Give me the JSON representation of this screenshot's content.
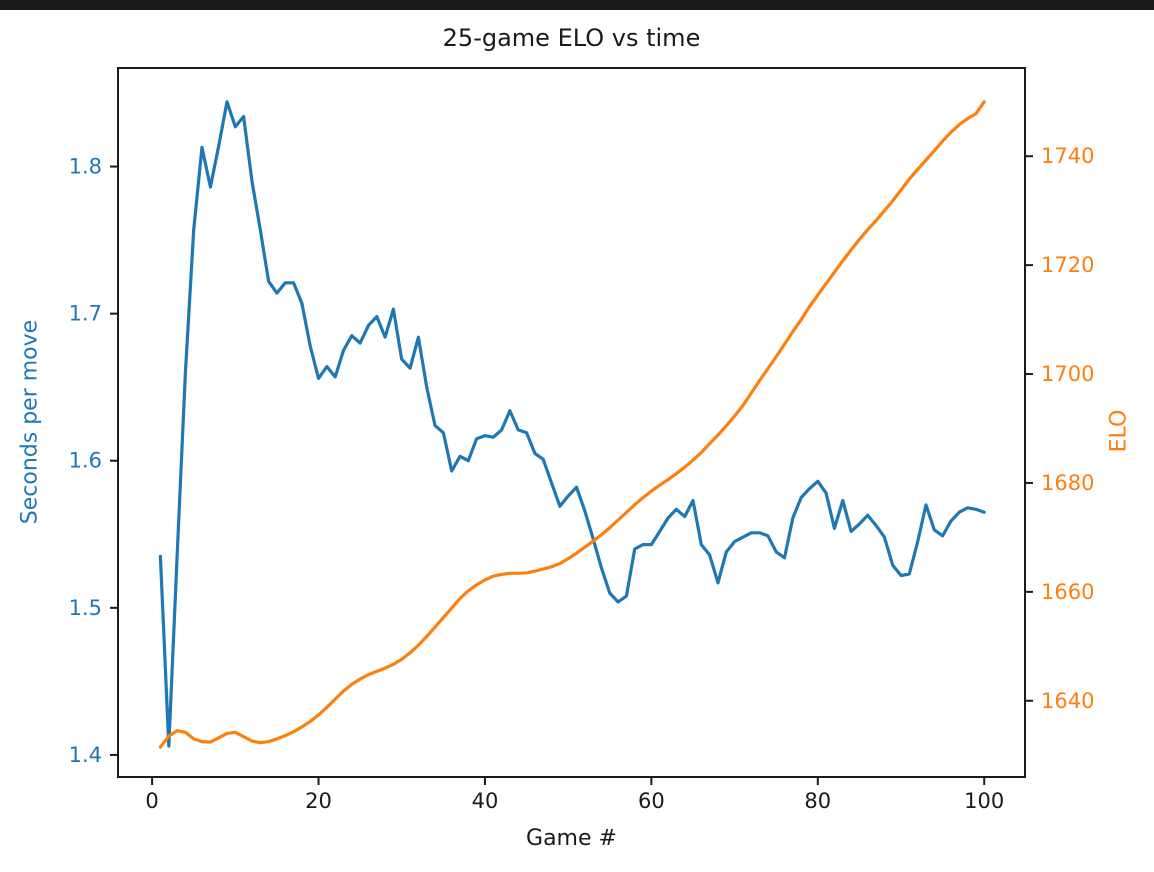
{
  "window": {
    "top_bar_color": "#1a1a1a",
    "background_color": "#ffffff"
  },
  "chart_data": {
    "type": "line",
    "title": "25-game ELO vs time",
    "xlabel": "Game #",
    "grid": false,
    "legend": null,
    "x": [
      1,
      2,
      3,
      4,
      5,
      6,
      7,
      8,
      9,
      10,
      11,
      12,
      13,
      14,
      15,
      16,
      17,
      18,
      19,
      20,
      21,
      22,
      23,
      24,
      25,
      26,
      27,
      28,
      29,
      30,
      31,
      32,
      33,
      34,
      35,
      36,
      37,
      38,
      39,
      40,
      41,
      42,
      43,
      44,
      45,
      46,
      47,
      48,
      49,
      50,
      51,
      52,
      53,
      54,
      55,
      56,
      57,
      58,
      59,
      60,
      61,
      62,
      63,
      64,
      65,
      66,
      67,
      68,
      69,
      70,
      71,
      72,
      73,
      74,
      75,
      76,
      77,
      78,
      79,
      80,
      81,
      82,
      83,
      84,
      85,
      86,
      87,
      88,
      89,
      90,
      91,
      92,
      93,
      94,
      95,
      96,
      97,
      98,
      99,
      100
    ],
    "series": [
      {
        "name": "Seconds per move",
        "axis": "left",
        "color": "#1f77b4",
        "values": [
          1.535,
          1.406,
          1.535,
          1.66,
          1.757,
          1.813,
          1.786,
          1.814,
          1.844,
          1.827,
          1.834,
          1.79,
          1.757,
          1.722,
          1.714,
          1.721,
          1.721,
          1.707,
          1.678,
          1.656,
          1.664,
          1.657,
          1.675,
          1.685,
          1.68,
          1.692,
          1.698,
          1.684,
          1.703,
          1.669,
          1.663,
          1.684,
          1.65,
          1.624,
          1.619,
          1.593,
          1.603,
          1.6,
          1.615,
          1.617,
          1.616,
          1.621,
          1.634,
          1.621,
          1.619,
          1.605,
          1.601,
          1.585,
          1.569,
          1.576,
          1.582,
          1.566,
          1.547,
          1.527,
          1.51,
          1.504,
          1.508,
          1.54,
          1.543,
          1.543,
          1.552,
          1.561,
          1.567,
          1.562,
          1.573,
          1.543,
          1.536,
          1.517,
          1.538,
          1.545,
          1.548,
          1.551,
          1.551,
          1.549,
          1.538,
          1.534,
          1.561,
          1.575,
          1.581,
          1.586,
          1.578,
          1.554,
          1.573,
          1.552,
          1.557,
          1.563,
          1.556,
          1.548,
          1.529,
          1.522,
          1.523,
          1.545,
          1.57,
          1.553,
          1.549,
          1.559,
          1.565,
          1.568,
          1.567,
          1.565
        ]
      },
      {
        "name": "ELO",
        "axis": "right",
        "color": "#ff7f0e",
        "values": [
          1631.5,
          1633.5,
          1634.5,
          1634.2,
          1633.0,
          1632.5,
          1632.4,
          1633.2,
          1634.0,
          1634.2,
          1633.4,
          1632.6,
          1632.3,
          1632.5,
          1633.0,
          1633.6,
          1634.3,
          1635.2,
          1636.2,
          1637.4,
          1638.8,
          1640.3,
          1641.8,
          1643.0,
          1644.0,
          1644.8,
          1645.4,
          1646.0,
          1646.7,
          1647.6,
          1648.8,
          1650.2,
          1651.8,
          1653.5,
          1655.3,
          1657.0,
          1658.8,
          1660.2,
          1661.3,
          1662.2,
          1662.9,
          1663.2,
          1663.4,
          1663.4,
          1663.5,
          1663.8,
          1664.2,
          1664.6,
          1665.2,
          1666.1,
          1667.1,
          1668.2,
          1669.3,
          1670.5,
          1671.8,
          1673.2,
          1674.6,
          1676.0,
          1677.3,
          1678.5,
          1679.6,
          1680.6,
          1681.7,
          1682.9,
          1684.2,
          1685.6,
          1687.2,
          1688.8,
          1690.5,
          1692.3,
          1694.2,
          1696.5,
          1698.8,
          1701.0,
          1703.2,
          1705.5,
          1707.8,
          1710.0,
          1712.4,
          1714.5,
          1716.6,
          1718.7,
          1720.8,
          1722.8,
          1724.7,
          1726.5,
          1728.2,
          1730.0,
          1731.8,
          1733.8,
          1735.8,
          1737.6,
          1739.3,
          1741.0,
          1742.8,
          1744.4,
          1745.8,
          1746.9,
          1747.8,
          1750.0
        ]
      }
    ],
    "axes": {
      "x": {
        "range": [
          -4.1,
          104.9
        ],
        "tick_values": [
          0,
          20,
          40,
          60,
          80,
          100
        ],
        "tick_labels": [
          "0",
          "20",
          "40",
          "60",
          "80",
          "100"
        ],
        "color": "#1a1a1a"
      },
      "y_left": {
        "label": "Seconds per move",
        "color": "#1f77b4",
        "range": [
          1.385,
          1.867
        ],
        "tick_values": [
          1.4,
          1.5,
          1.6,
          1.7,
          1.8
        ],
        "tick_labels": [
          "1.4",
          "1.5",
          "1.6",
          "1.7",
          "1.8"
        ]
      },
      "y_right": {
        "label": "ELO",
        "color": "#ff7f0e",
        "range": [
          1626.0,
          1756.2
        ],
        "tick_values": [
          1640,
          1660,
          1680,
          1700,
          1720,
          1740
        ],
        "tick_labels": [
          "1640",
          "1660",
          "1680",
          "1700",
          "1720",
          "1740"
        ]
      }
    }
  }
}
